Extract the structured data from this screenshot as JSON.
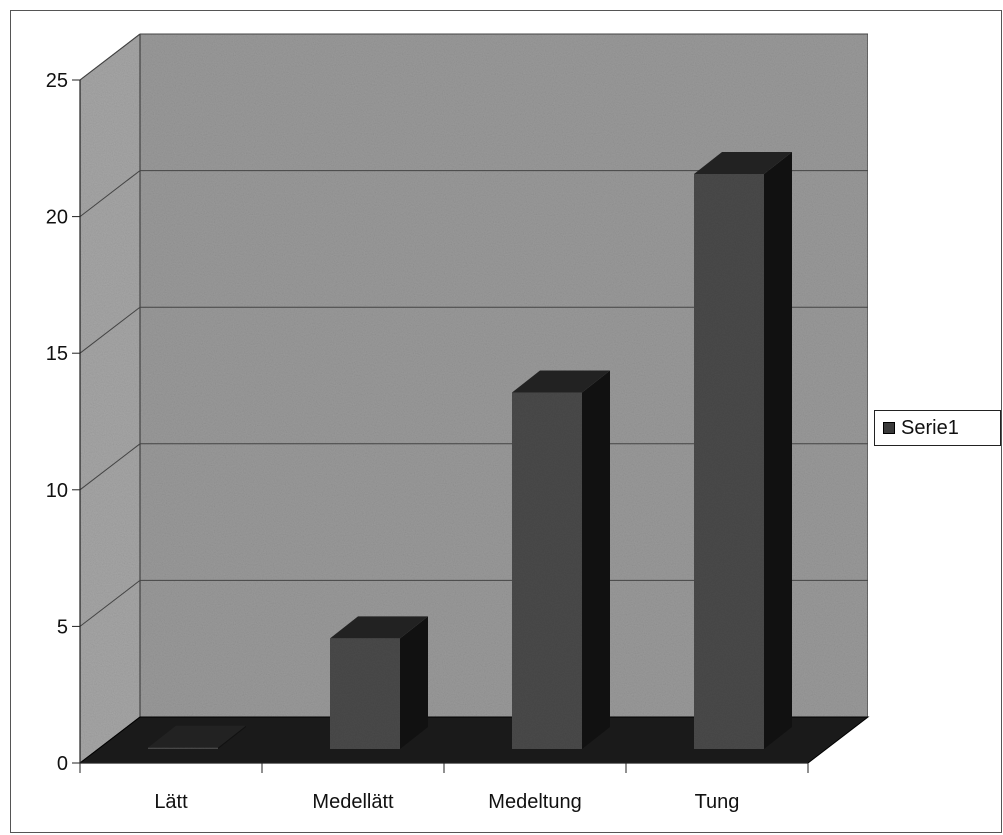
{
  "chart_data": {
    "type": "bar",
    "categories": [
      "Lätt",
      "Medellätt",
      "Medeltung",
      "Tung"
    ],
    "series": [
      {
        "name": "Serie1",
        "values": [
          1,
          5,
          14,
          22
        ]
      }
    ],
    "ylim": [
      0,
      25
    ],
    "yticks": [
      0,
      5,
      10,
      15,
      20,
      25
    ],
    "grid": true,
    "legend_position": "right",
    "colors": {
      "wall": "#9a9a9a",
      "bar_front": "#4a4a4a",
      "bar_side": "#111111",
      "bar_top": "#222222",
      "floor": "#1a1a1a"
    }
  }
}
